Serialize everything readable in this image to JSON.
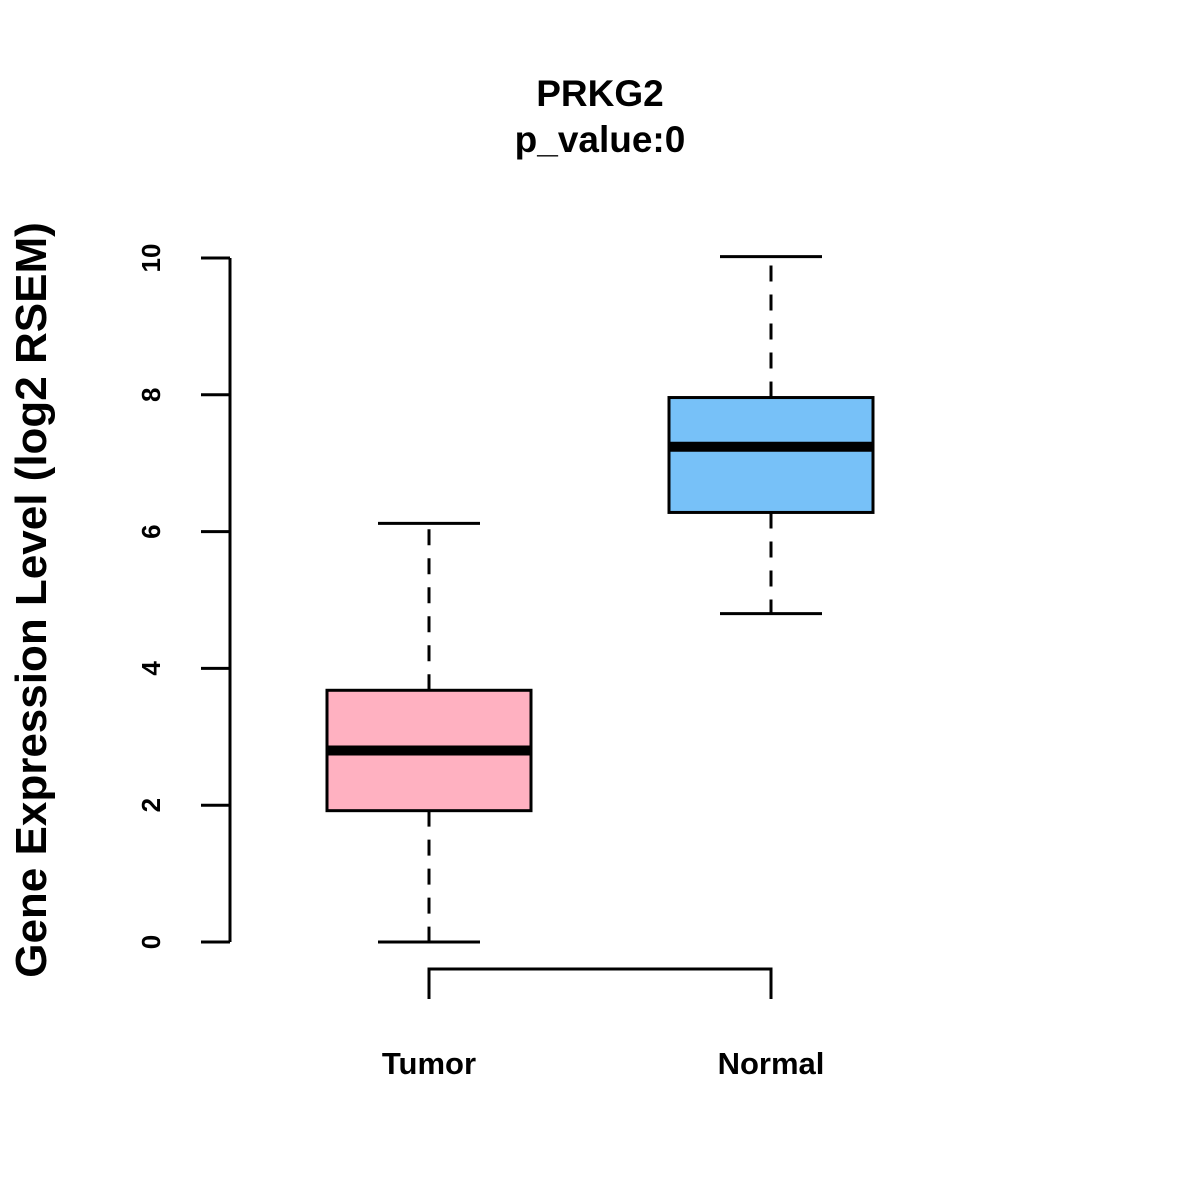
{
  "chart_data": {
    "type": "boxplot",
    "title": "PRKG2",
    "subtitle": "p_value:0",
    "xlabel": "",
    "ylabel": "Gene Expression Level (log2 RSEM)",
    "ylim": [
      0,
      10
    ],
    "yticks": [
      "0",
      "2",
      "4",
      "6",
      "8",
      "10"
    ],
    "categories": [
      "Tumor",
      "Normal"
    ],
    "series": [
      {
        "name": "Tumor",
        "min": 0.0,
        "q1": 1.92,
        "median": 2.8,
        "q3": 3.68,
        "max": 6.12,
        "color": "#FFB1C1"
      },
      {
        "name": "Normal",
        "min": 4.8,
        "q1": 6.28,
        "median": 7.24,
        "q3": 7.96,
        "max": 10.02,
        "color": "#77C1F8"
      }
    ],
    "significance_bracket": {
      "from": "Tumor",
      "to": "Normal"
    },
    "grid": false,
    "legend": "none"
  }
}
